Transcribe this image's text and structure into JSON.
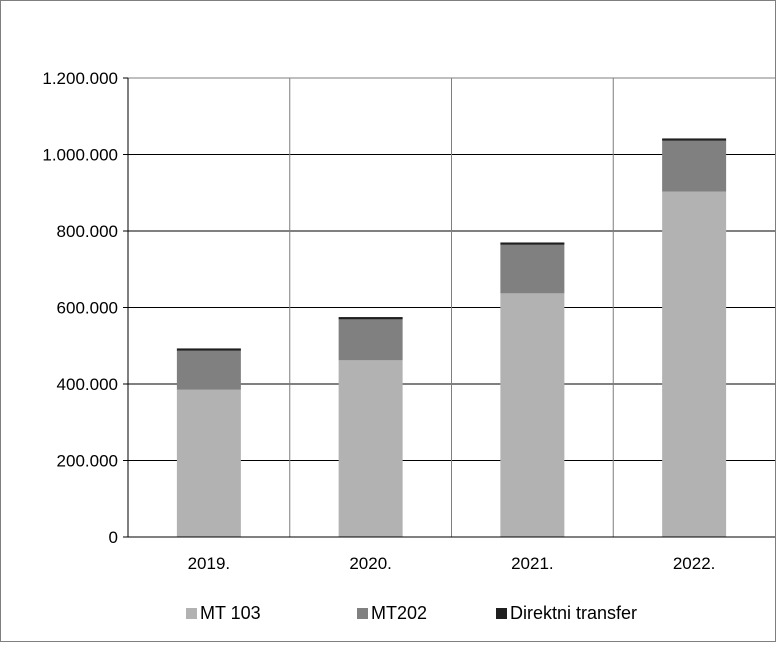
{
  "chart_data": {
    "type": "bar",
    "stacked": true,
    "categories": [
      "2019.",
      "2020.",
      "2021.",
      "2022."
    ],
    "series": [
      {
        "name": "MT 103",
        "color": "#b2b2b2",
        "values": [
          385000,
          462000,
          637000,
          903000
        ]
      },
      {
        "name": "MT202",
        "color": "#808080",
        "values": [
          102000,
          107000,
          127000,
          133000
        ]
      },
      {
        "name": "Direktni transfer",
        "color": "#1f1f1f",
        "values": [
          6000,
          6000,
          6000,
          6000
        ]
      }
    ],
    "y_ticks": [
      {
        "value": 0,
        "label": "0"
      },
      {
        "value": 200000,
        "label": "200.000"
      },
      {
        "value": 400000,
        "label": "400.000"
      },
      {
        "value": 600000,
        "label": "600.000"
      },
      {
        "value": 800000,
        "label": "800.000"
      },
      {
        "value": 1000000,
        "label": "1.000.000"
      },
      {
        "value": 1200000,
        "label": "1.200.000"
      }
    ],
    "ylim": [
      0,
      1200000
    ],
    "grid": true,
    "legend_position": "bottom"
  }
}
